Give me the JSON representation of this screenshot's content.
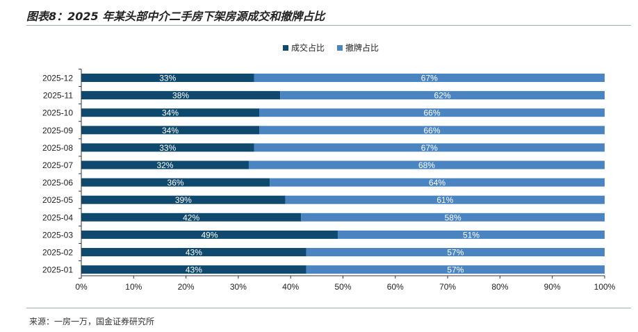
{
  "header": {
    "title": "图表8：2025 年某头部中介二手房下架房源成交和撤牌占比"
  },
  "footer": {
    "source": "来源：一房一万，国金证券研究所"
  },
  "colors": {
    "series1": "#0f4a6e",
    "series2": "#4a85c2",
    "label": "#ffffff",
    "axis": "#222222"
  },
  "chart_data": {
    "type": "bar",
    "orientation": "horizontal",
    "stacked": true,
    "title": "图表8：2025 年某头部中介二手房下架房源成交和撤牌占比",
    "xlabel": "",
    "ylabel": "",
    "xlim": [
      0,
      100
    ],
    "x_ticks": [
      "0%",
      "10%",
      "20%",
      "30%",
      "40%",
      "50%",
      "60%",
      "70%",
      "80%",
      "90%",
      "100%"
    ],
    "legend_position": "top-center",
    "categories": [
      "2025-12",
      "2025-11",
      "2025-10",
      "2025-09",
      "2025-08",
      "2025-07",
      "2025-06",
      "2025-05",
      "2025-04",
      "2025-03",
      "2025-02",
      "2025-01"
    ],
    "series": [
      {
        "name": "成交占比",
        "values": [
          33,
          38,
          34,
          34,
          33,
          32,
          36,
          39,
          42,
          49,
          43,
          43
        ],
        "labels": [
          "33%",
          "38%",
          "34%",
          "34%",
          "33%",
          "32%",
          "36%",
          "39%",
          "42%",
          "49%",
          "43%",
          "43%"
        ]
      },
      {
        "name": "撤牌占比",
        "values": [
          67,
          62,
          66,
          66,
          67,
          68,
          64,
          61,
          58,
          51,
          57,
          57
        ],
        "labels": [
          "67%",
          "62%",
          "66%",
          "66%",
          "67%",
          "68%",
          "64%",
          "61%",
          "58%",
          "51%",
          "57%",
          "57%"
        ]
      }
    ]
  }
}
